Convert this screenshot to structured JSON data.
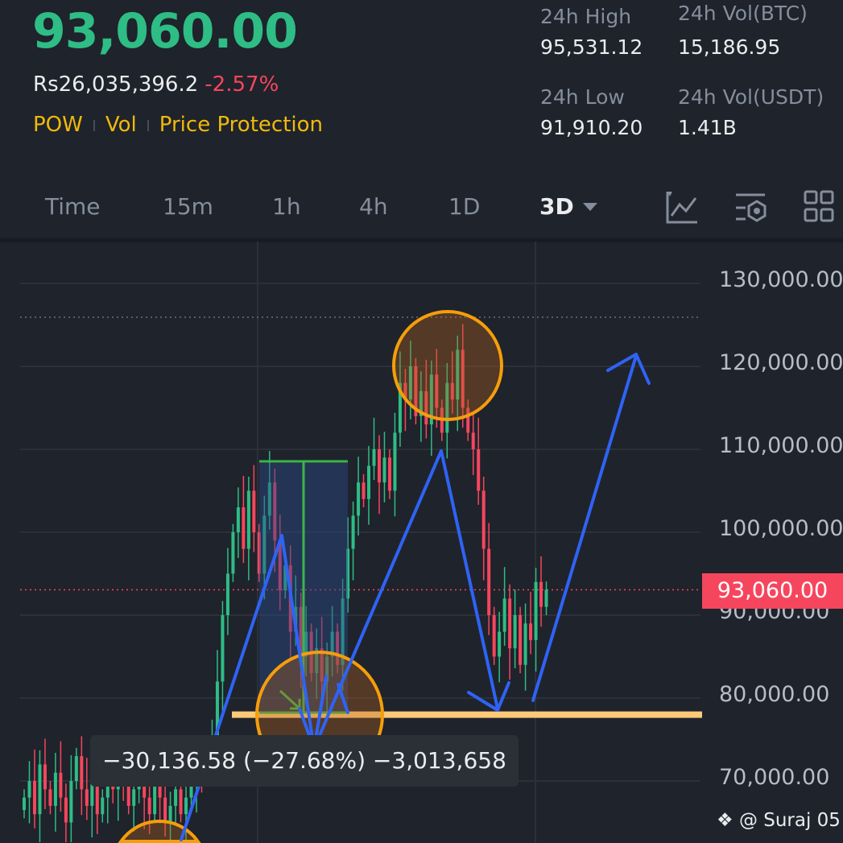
{
  "header": {
    "last_price": "93,060.00",
    "fiat_price": "Rs26,035,396.2",
    "change_pct": "-2.57%",
    "tags": [
      "POW",
      "Vol",
      "Price Protection"
    ],
    "stats": {
      "high_label": "24h High",
      "high_value": "95,531.12",
      "low_label": "24h Low",
      "low_value": "91,910.20",
      "vol_btc_label": "24h Vol(BTC)",
      "vol_btc_value": "15,186.95",
      "vol_usdt_label": "24h Vol(USDT)",
      "vol_usdt_value": "1.41B"
    }
  },
  "tabs": [
    {
      "label": "Time"
    },
    {
      "label": "15m"
    },
    {
      "label": "1h"
    },
    {
      "label": "4h"
    },
    {
      "label": "1D"
    },
    {
      "label": "3D",
      "active": true
    }
  ],
  "toolbar_icons": [
    "indicator-chart-icon",
    "settings-icon",
    "grid-layout-icon"
  ],
  "colors": {
    "up": "#2ebd85",
    "down": "#f6465d",
    "accent": "#f0b90b",
    "annotation_blue": "#2f63f5",
    "annotation_orange": "#f59e0b",
    "support_line": "#ffc978"
  },
  "chart_data": {
    "type": "candlestick",
    "y_ticks": [
      "130,000.00",
      "120,000.00",
      "110,000.00",
      "100,000.00",
      "90,000.00",
      "80,000.00",
      "70,000.00"
    ],
    "ylim": [
      66000,
      134000
    ],
    "current_price": 93060,
    "current_price_label": "93,060.00",
    "support_level": 78000,
    "closes": [
      68000,
      70000,
      66000,
      72000,
      69000,
      67000,
      71000,
      68000,
      65000,
      70000,
      73000,
      69000,
      67000,
      70000,
      66000,
      68000,
      71000,
      69000,
      72000,
      70000,
      67000,
      69000,
      71000,
      68000,
      66000,
      70000,
      68000,
      65000,
      67000,
      69000,
      66000,
      68000,
      70000,
      72000,
      71000,
      73000,
      75000,
      82000,
      90000,
      95000,
      100000,
      103000,
      98000,
      105000,
      100000,
      95000,
      102000,
      106000,
      99000,
      93000,
      96000,
      88000,
      91000,
      85000,
      88000,
      83000,
      86000,
      82000,
      85000,
      88000,
      84000,
      92000,
      98000,
      102000,
      106000,
      104000,
      108000,
      110000,
      106000,
      109000,
      105000,
      112000,
      118000,
      116000,
      120000,
      114000,
      117000,
      113000,
      119000,
      115000,
      112000,
      118000,
      116000,
      122000,
      115000,
      112000,
      110000,
      105000,
      98000,
      90000,
      85000,
      88000,
      92000,
      86000,
      90000,
      84000,
      89000,
      87000,
      94000,
      91000,
      93060
    ],
    "measure_tooltip": "−30,136.58 (−27.68%) −3,013,658"
  },
  "watermark": "@ Suraj 05"
}
